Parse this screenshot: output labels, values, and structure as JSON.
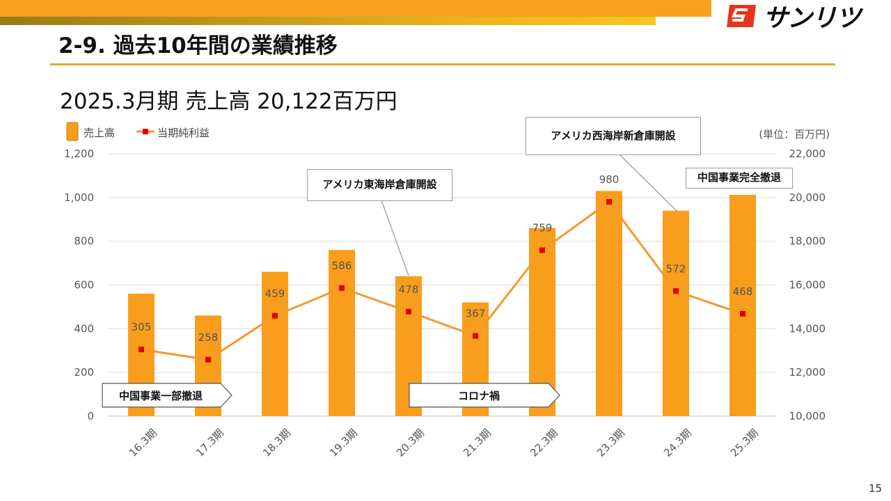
{
  "slide": {
    "title": "2-9. 過去10年間の業績推移",
    "headline": "2025.3月期  売上高  20,122百万円",
    "page_number": "15",
    "logo_text": "サンリツ",
    "unit_note": "(単位：百万円)"
  },
  "colors": {
    "bar": "#f99d1c",
    "line": "#f39a2e",
    "marker": "#e00000",
    "accent": "#f7a020"
  },
  "chart_data": {
    "type": "bar+line",
    "categories": [
      "16.3期",
      "17.3期",
      "18.3期",
      "19.3期",
      "20.3期",
      "21.3期",
      "22.3期",
      "23.3期",
      "24.3期",
      "25.3期"
    ],
    "series": [
      {
        "name": "売上高",
        "type": "bar",
        "axis": "right",
        "values": [
          15600,
          14600,
          16600,
          17600,
          16400,
          15200,
          18600,
          20300,
          19400,
          20122
        ]
      },
      {
        "name": "当期純利益",
        "type": "line",
        "axis": "left",
        "values": [
          305,
          258,
          459,
          586,
          478,
          367,
          759,
          980,
          572,
          468
        ]
      }
    ],
    "left_axis": {
      "min": 0,
      "max": 1200,
      "ticks": [
        "0",
        "200",
        "400",
        "600",
        "800",
        "1,000",
        "1,200"
      ]
    },
    "right_axis": {
      "min": 10000,
      "max": 22000,
      "ticks": [
        "10,000",
        "12,000",
        "14,000",
        "16,000",
        "18,000",
        "20,000",
        "22,000"
      ]
    },
    "annotations": [
      {
        "id": "east",
        "text": "アメリカ東海岸倉庫開設"
      },
      {
        "id": "west",
        "text": "アメリカ西海岸新倉庫開設"
      },
      {
        "id": "china-exit",
        "text": "中国事業完全撤退"
      },
      {
        "id": "china-partial",
        "text": "中国事業一部撤退"
      },
      {
        "id": "corona",
        "text": "コロナ禍"
      }
    ]
  }
}
